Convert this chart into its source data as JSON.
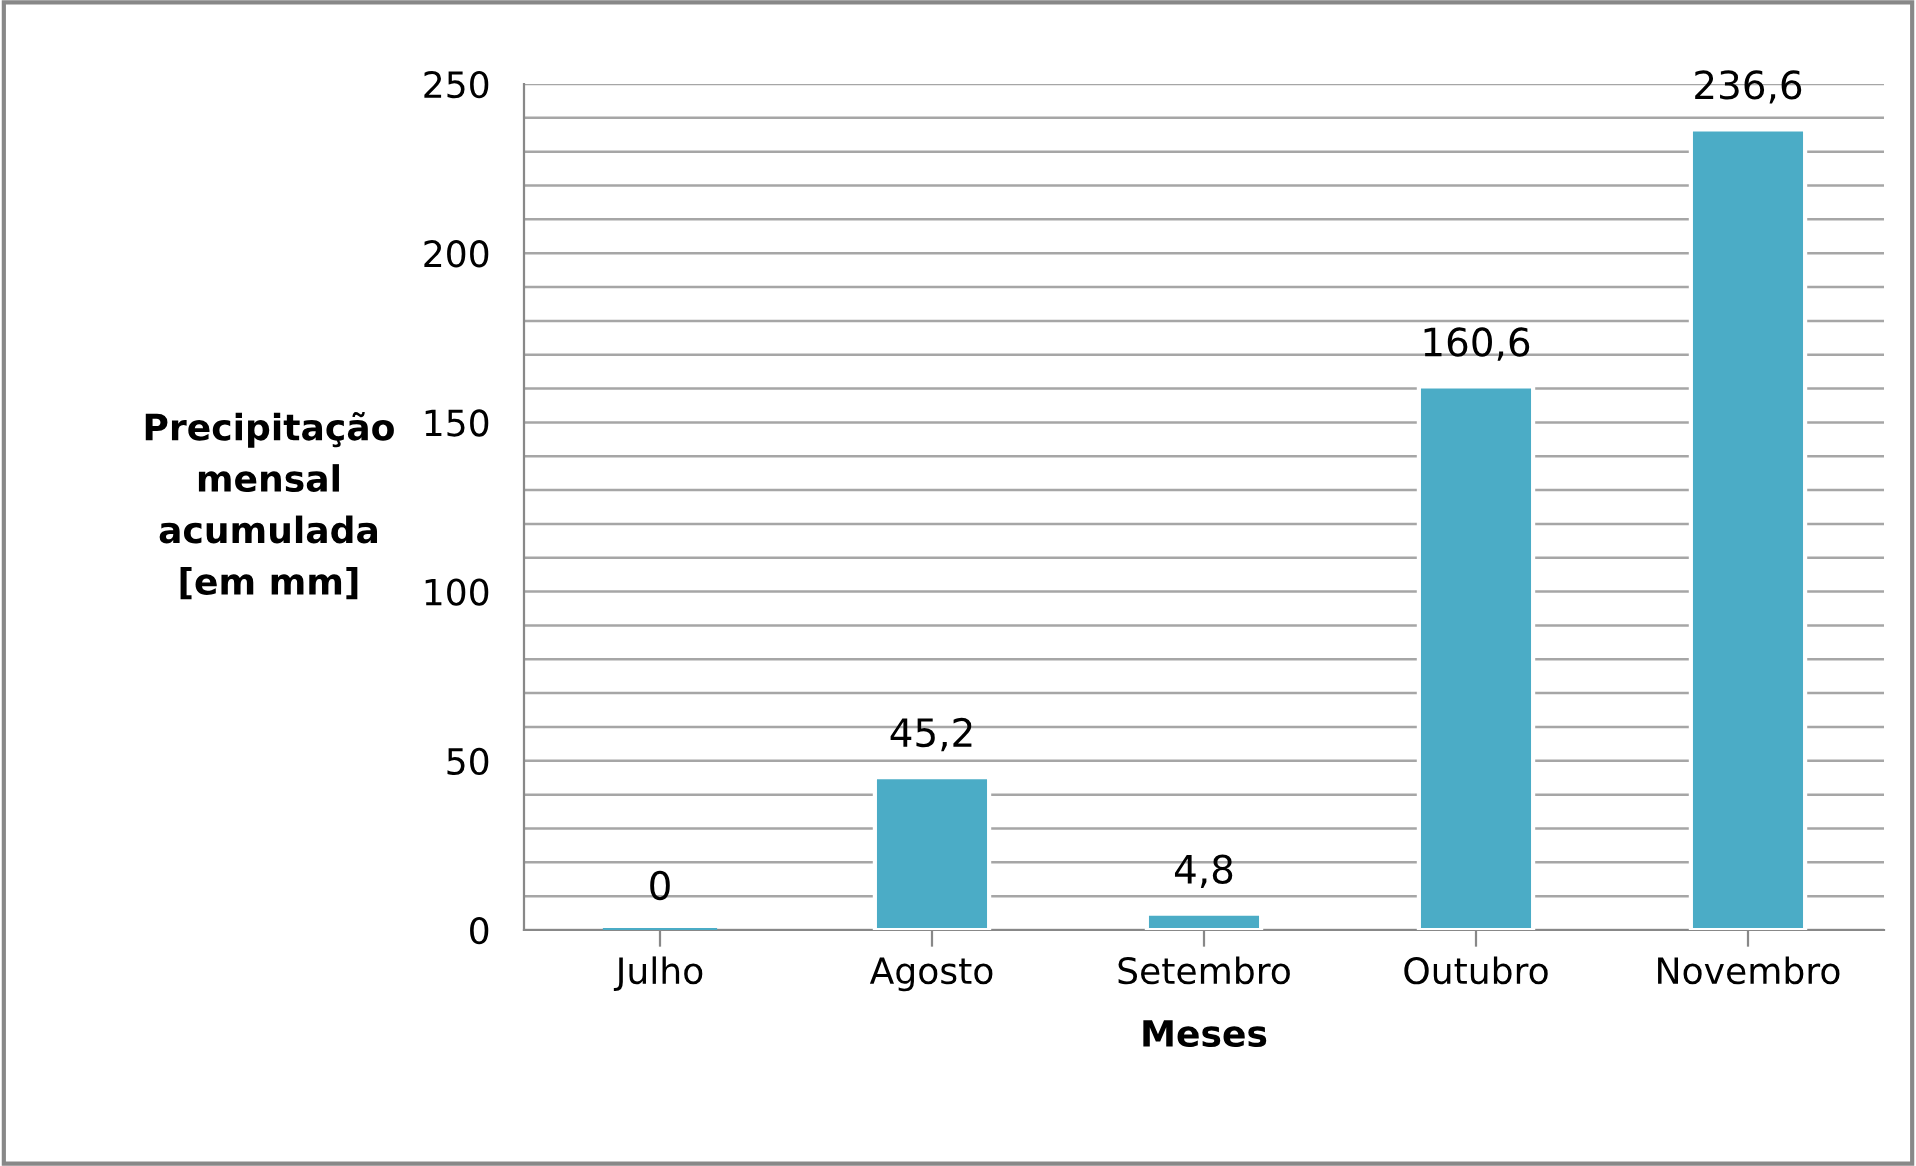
{
  "chart_data": {
    "type": "bar",
    "xlabel": "Meses",
    "ylabel": "Precipitação\nmensal\nacumulada\n[em mm]",
    "categories": [
      "Julho",
      "Agosto",
      "Setembro",
      "Outubro",
      "Novembro"
    ],
    "values": [
      0,
      45.2,
      4.8,
      160.6,
      236.6
    ],
    "value_labels": [
      "0",
      "45,2",
      "4,8",
      "160,6",
      "236,6"
    ],
    "color": "#4bacc6",
    "ylim": [
      0,
      250
    ],
    "yticks": [
      0,
      {
        "value": 10,
        "label": null
      },
      {
        "value": 20,
        "label": null
      },
      {
        "value": 30,
        "label": null
      },
      {
        "value": 40,
        "label": null
      },
      50,
      {
        "value": 60,
        "label": null
      },
      {
        "value": 70,
        "label": null
      },
      {
        "value": 80,
        "label": null
      },
      {
        "value": 90,
        "label": null
      },
      100,
      {
        "value": 110,
        "label": null
      },
      {
        "value": 120,
        "label": null
      },
      {
        "value": 130,
        "label": null
      },
      {
        "value": 140,
        "label": null
      },
      150,
      {
        "value": 160,
        "label": null
      },
      {
        "value": 170,
        "label": null
      },
      {
        "value": 180,
        "label": null
      },
      {
        "value": 190,
        "label": null
      },
      200,
      {
        "value": 210,
        "label": null
      },
      {
        "value": 220,
        "label": null
      },
      {
        "value": 230,
        "label": null
      },
      {
        "value": 240,
        "label": null
      },
      250
    ],
    "grid": "y"
  }
}
